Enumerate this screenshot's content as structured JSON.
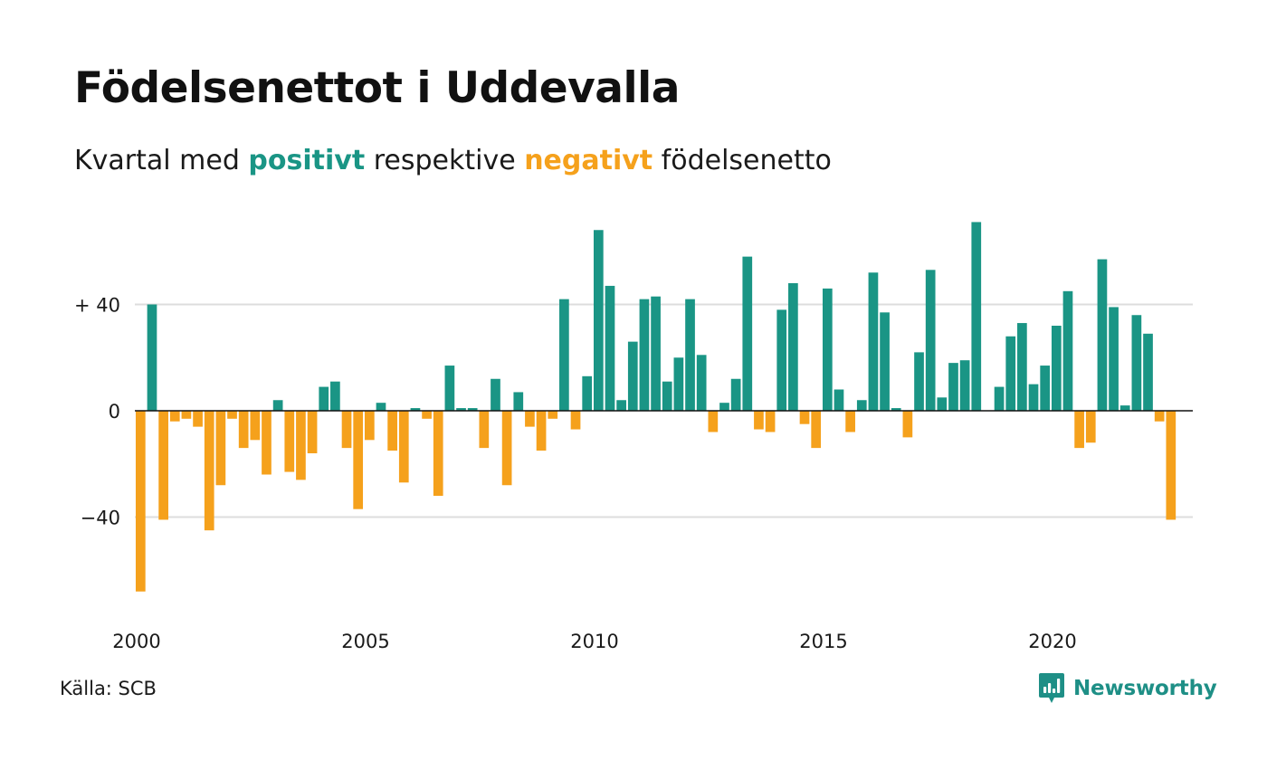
{
  "title": "Födelsenettot i Uddevalla",
  "subtitle": {
    "prefix": "Kvartal med ",
    "positive_word": "positivt",
    "middle": " respektive ",
    "negative_word": "negativt",
    "suffix": " födelsenetto"
  },
  "source": "Källa: SCB",
  "brand": "Newsworthy",
  "colors": {
    "positive": "#1a9585",
    "negative": "#f5a11c",
    "grid": "#dddddd",
    "brand": "#1e8f86"
  },
  "chart_data": {
    "type": "bar",
    "unit": "quarter",
    "x_start": "2000 Q1",
    "x_tick_labels": [
      "2000",
      "2005",
      "2010",
      "2015",
      "2020"
    ],
    "y_tick_labels": [
      "+ 40",
      "0",
      "−40"
    ],
    "y_ticks": [
      40,
      0,
      -40
    ],
    "ylim": [
      -70,
      72
    ],
    "grid": true,
    "values": [
      -68,
      40,
      -41,
      -4,
      -3,
      -6,
      -45,
      -28,
      -3,
      -14,
      -11,
      -24,
      4,
      -23,
      -26,
      -16,
      9,
      11,
      -14,
      -37,
      -11,
      3,
      -15,
      -27,
      1,
      -3,
      -32,
      17,
      1,
      1,
      -14,
      12,
      -28,
      7,
      -6,
      -15,
      -3,
      42,
      -7,
      13,
      68,
      47,
      4,
      26,
      42,
      43,
      11,
      20,
      42,
      21,
      -8,
      3,
      12,
      58,
      -7,
      -8,
      38,
      48,
      -5,
      -14,
      46,
      8,
      -8,
      4,
      52,
      37,
      1,
      -10,
      22,
      53,
      5,
      18,
      19,
      71,
      0,
      9,
      28,
      33,
      10,
      17,
      32,
      45,
      -14,
      -12,
      57,
      39,
      2,
      36,
      29,
      -4,
      -41
    ]
  }
}
